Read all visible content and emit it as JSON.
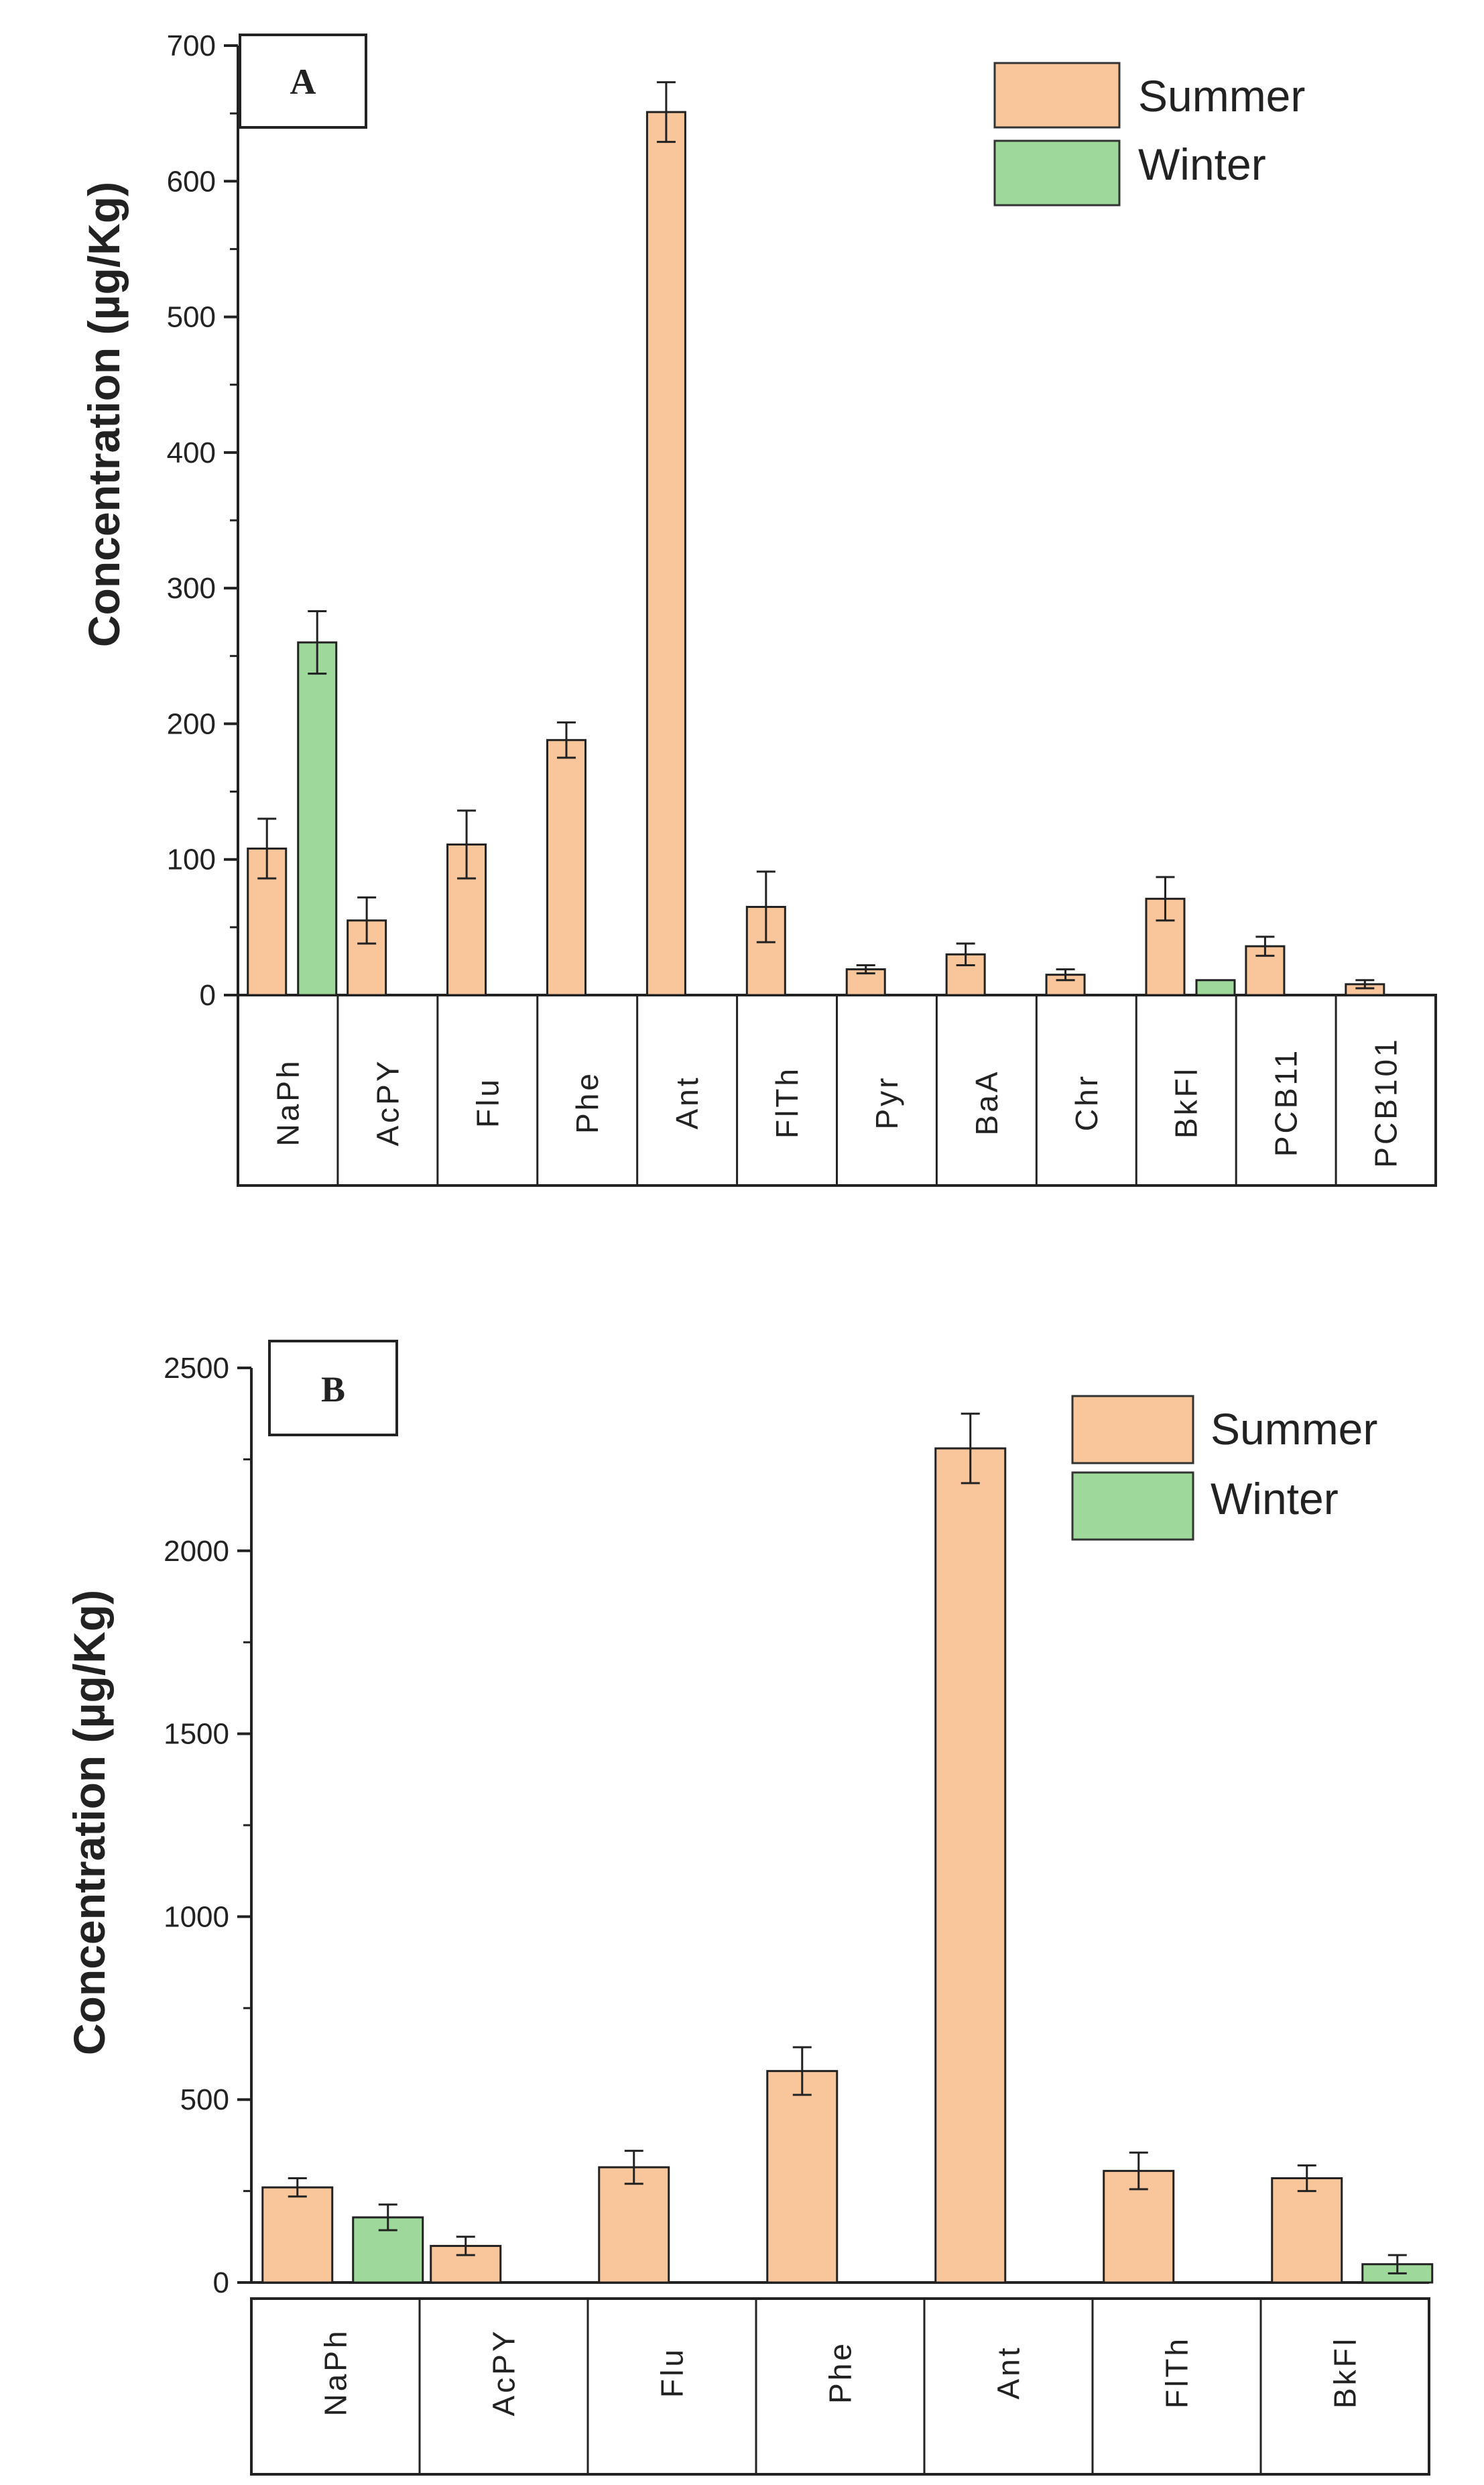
{
  "chart_data": [
    {
      "type": "bar",
      "panel_label": "A",
      "ylabel": "Concentration (µg/Kg)",
      "xlabel": "",
      "ylim": [
        0,
        700
      ],
      "yticks": [
        0,
        100,
        200,
        300,
        400,
        500,
        600,
        700
      ],
      "ytick_labels": [
        "0",
        "100",
        "200",
        "300",
        "400",
        "500",
        "600",
        "700"
      ],
      "legend": [
        "Summer",
        "Winter"
      ],
      "legend_position": "top-right",
      "categories": [
        "NaPh",
        "AcPY",
        "Flu",
        "Phe",
        "Ant",
        "FlTh",
        "Pyr",
        "BaA",
        "Chr",
        "BkFl",
        "PCB11",
        "PCB101"
      ],
      "series": [
        {
          "name": "Summer",
          "color": "#F9C69B",
          "values": [
            108,
            55,
            111,
            188,
            651,
            65,
            19,
            30,
            15,
            71,
            36,
            8
          ],
          "errors": [
            22,
            17,
            25,
            13,
            22,
            26,
            3,
            8,
            4,
            16,
            7,
            3
          ]
        },
        {
          "name": "Winter",
          "color": "#9ED89B",
          "values": [
            260,
            null,
            null,
            null,
            null,
            null,
            null,
            null,
            null,
            11,
            null,
            null
          ],
          "errors": [
            23,
            null,
            null,
            null,
            null,
            null,
            null,
            null,
            null,
            null,
            null,
            null
          ]
        }
      ]
    },
    {
      "type": "bar",
      "panel_label": "B",
      "ylabel": "Concentration (µg/Kg)",
      "xlabel": "",
      "ylim": [
        0,
        2500
      ],
      "yticks": [
        0,
        500,
        1000,
        1500,
        2000,
        2500
      ],
      "ytick_labels": [
        "0",
        "500",
        "1000",
        "1500",
        "2000",
        "2500"
      ],
      "legend": [
        "Summer",
        "Winter"
      ],
      "legend_position": "top-right",
      "categories": [
        "NaPh",
        "AcPY",
        "Flu",
        "Phe",
        "Ant",
        "FlTh",
        "BkFl"
      ],
      "series": [
        {
          "name": "Summer",
          "color": "#F9C69B",
          "values": [
            260,
            100,
            315,
            578,
            2280,
            305,
            285
          ],
          "errors": [
            25,
            25,
            45,
            65,
            95,
            50,
            35
          ]
        },
        {
          "name": "Winter",
          "color": "#9ED89B",
          "values": [
            178,
            null,
            null,
            null,
            null,
            null,
            50
          ],
          "errors": [
            35,
            null,
            null,
            null,
            null,
            null,
            25
          ]
        }
      ]
    }
  ]
}
